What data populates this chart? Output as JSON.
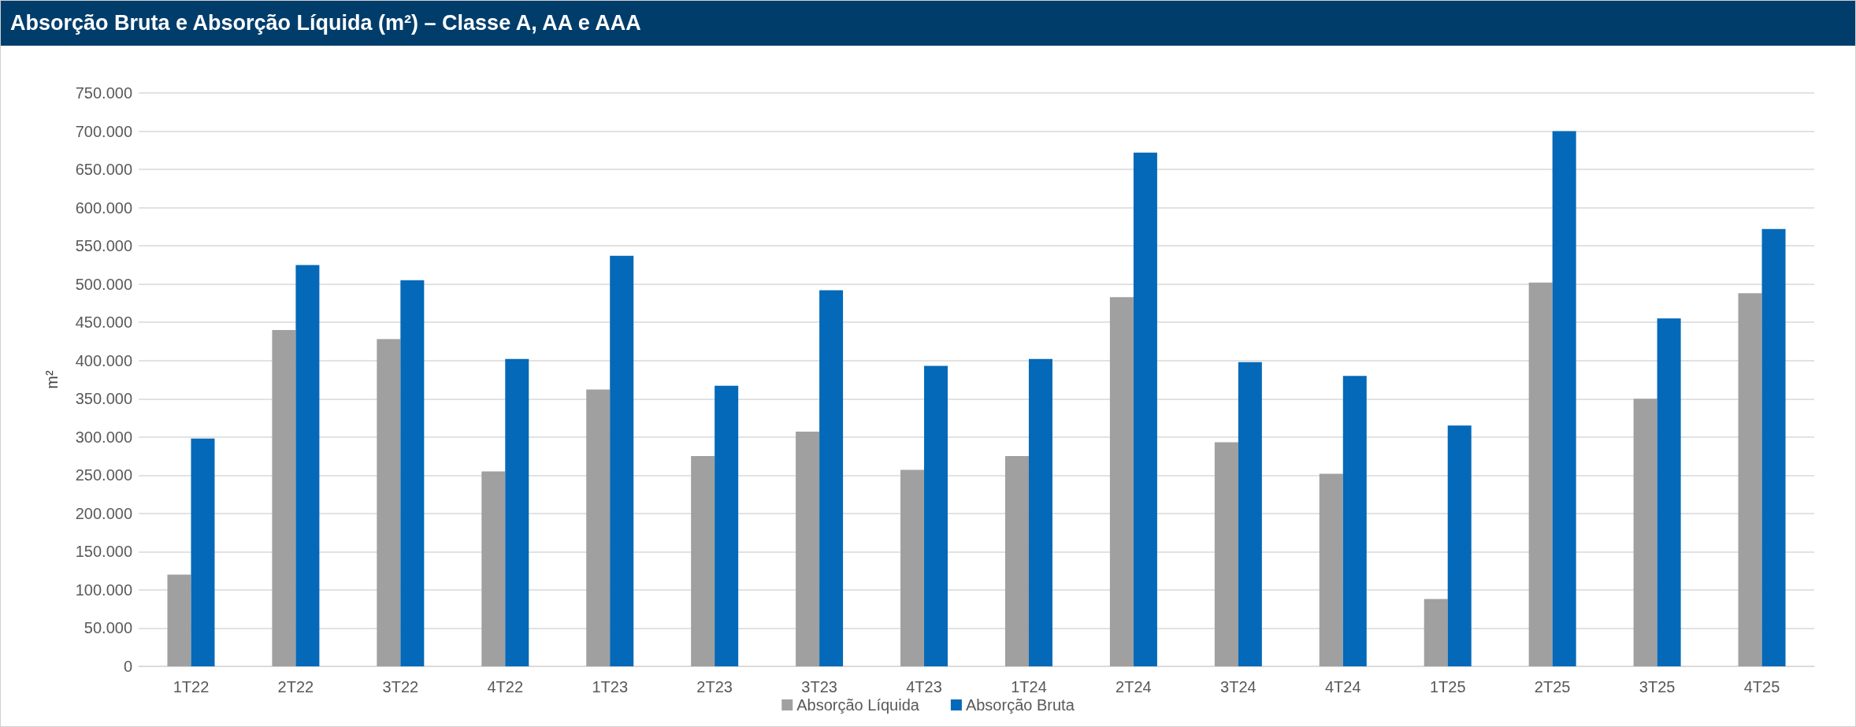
{
  "chart_data": {
    "type": "bar",
    "title": "Absorção Bruta e Absorção Líquida (m²) – Classe A, AA e AAA",
    "ylabel": "m²",
    "categories": [
      "1T22",
      "2T22",
      "3T22",
      "4T22",
      "1T23",
      "2T23",
      "3T23",
      "4T23",
      "1T24",
      "2T24",
      "3T24",
      "4T24",
      "1T25",
      "2T25",
      "3T25",
      "4T25"
    ],
    "series": [
      {
        "name": "Absorção Líquida",
        "color": "#a0a0a0",
        "values": [
          120000,
          440000,
          428000,
          255000,
          362000,
          275000,
          307000,
          257000,
          275000,
          483000,
          293000,
          252000,
          88000,
          502000,
          350000,
          488000
        ]
      },
      {
        "name": "Absorção Bruta",
        "color": "#0469b8",
        "values": [
          298000,
          525000,
          505000,
          402000,
          537000,
          367000,
          492000,
          393000,
          402000,
          672000,
          398000,
          380000,
          315000,
          700000,
          455000,
          572000
        ]
      }
    ],
    "ylim": [
      0,
      750000
    ],
    "yticks": [
      0,
      {
        "value": 50000,
        "label": "50.000"
      },
      {
        "value": 100000,
        "label": "100.000"
      },
      {
        "value": 150000,
        "label": "150.000"
      },
      {
        "value": 200000,
        "label": "200.000"
      },
      {
        "value": 250000,
        "label": "250.000"
      },
      {
        "value": 300000,
        "label": "300.000"
      },
      {
        "value": 350000,
        "label": "350.000"
      },
      {
        "value": 400000,
        "label": "400.000"
      },
      {
        "value": 450000,
        "label": "450.000"
      },
      {
        "value": 500000,
        "label": "500.000"
      },
      {
        "value": 550000,
        "label": "550.000"
      },
      {
        "value": 600000,
        "label": "600.000"
      },
      {
        "value": 650000,
        "label": "650.000"
      },
      {
        "value": 700000,
        "label": "700.000"
      },
      {
        "value": 750000,
        "label": "750.000"
      }
    ],
    "grid": "y",
    "legend": "bottom"
  }
}
